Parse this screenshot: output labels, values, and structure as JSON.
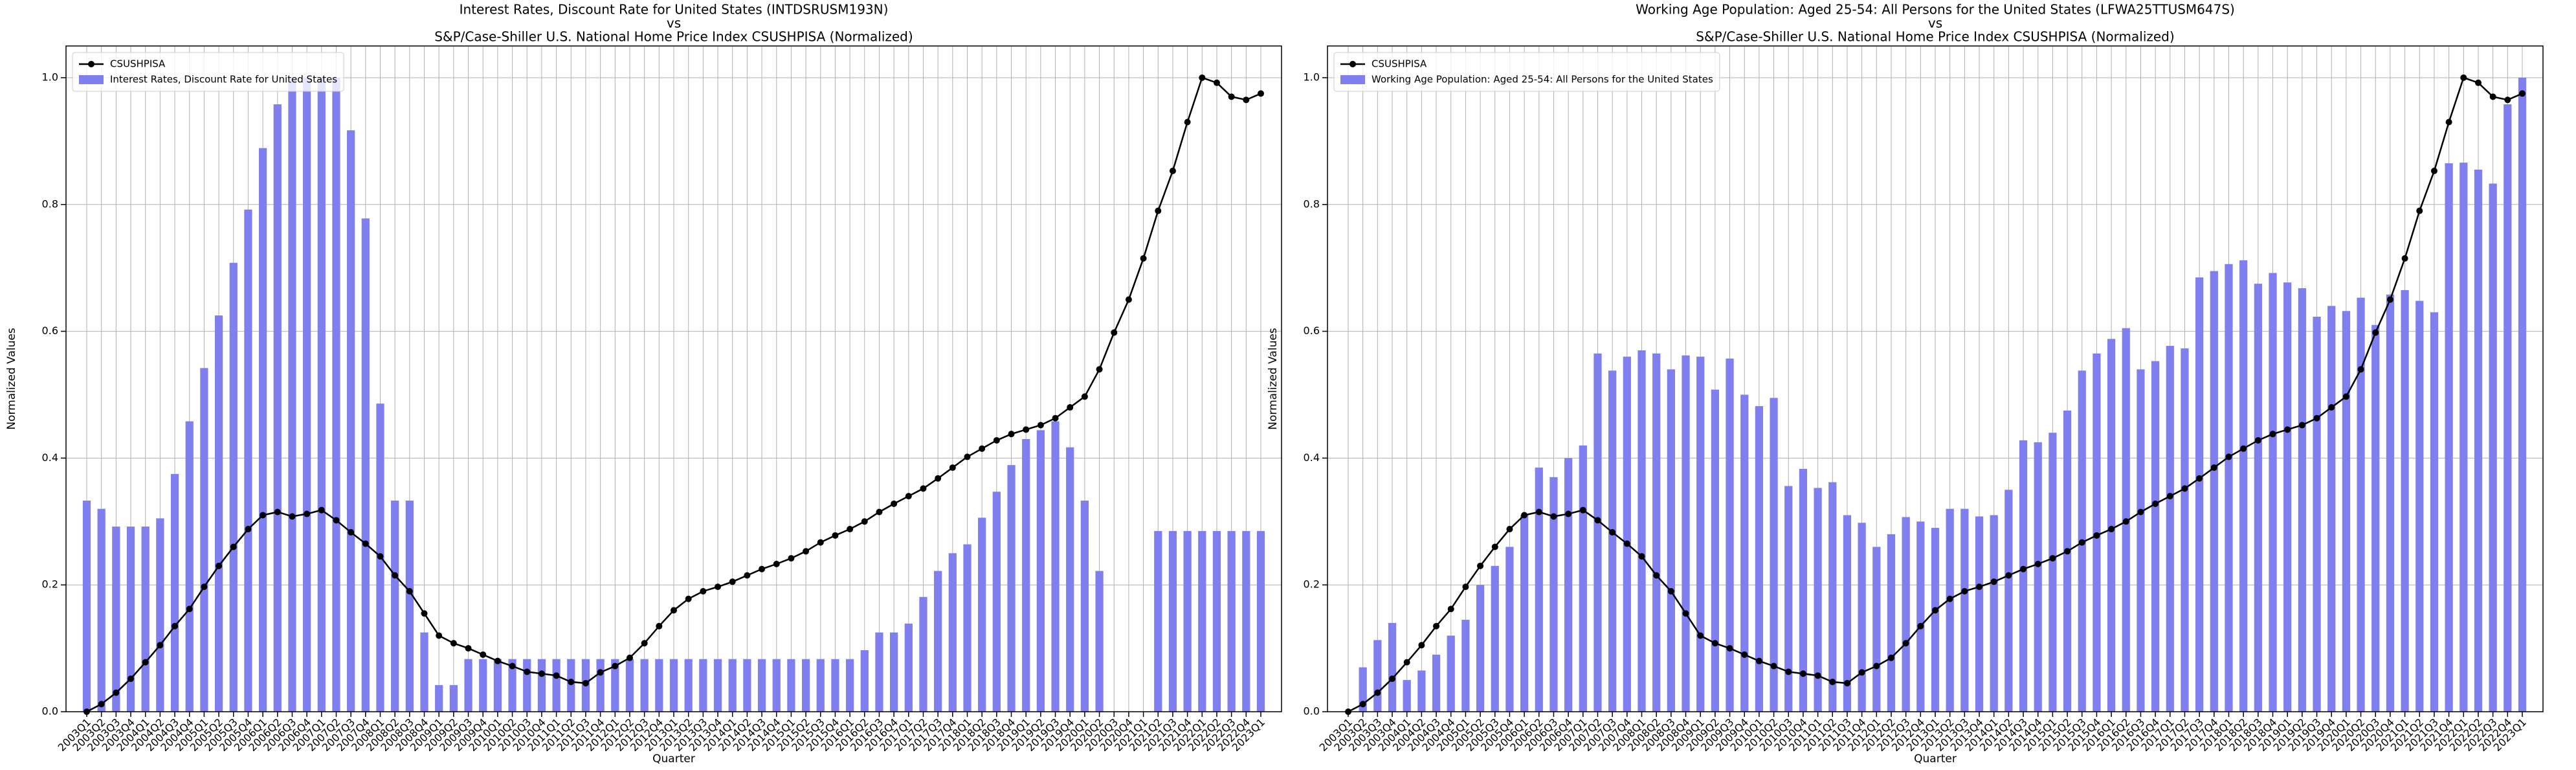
{
  "chart_data": [
    {
      "type": "combo",
      "title": [
        "Interest Rates, Discount Rate for United States (INTDSRUSM193N)",
        "vs",
        "S&P/Case-Shiller U.S. National Home Price Index CSUSHPISA (Normalized)"
      ],
      "xlabel": "Quarter",
      "ylabel": "Normalized Values",
      "categories": [
        "2003Q1",
        "2003Q2",
        "2003Q3",
        "2003Q4",
        "2004Q1",
        "2004Q2",
        "2004Q3",
        "2004Q4",
        "2005Q1",
        "2005Q2",
        "2005Q3",
        "2005Q4",
        "2006Q1",
        "2006Q2",
        "2006Q3",
        "2006Q4",
        "2007Q1",
        "2007Q2",
        "2007Q3",
        "2007Q4",
        "2008Q1",
        "2008Q2",
        "2008Q3",
        "2008Q4",
        "2009Q1",
        "2009Q2",
        "2009Q3",
        "2009Q4",
        "2010Q1",
        "2010Q2",
        "2010Q3",
        "2010Q4",
        "2011Q1",
        "2011Q2",
        "2011Q3",
        "2011Q4",
        "2012Q1",
        "2012Q2",
        "2012Q3",
        "2012Q4",
        "2013Q1",
        "2013Q2",
        "2013Q3",
        "2013Q4",
        "2014Q1",
        "2014Q2",
        "2014Q3",
        "2014Q4",
        "2015Q1",
        "2015Q2",
        "2015Q3",
        "2015Q4",
        "2016Q1",
        "2016Q2",
        "2016Q3",
        "2016Q4",
        "2017Q1",
        "2017Q2",
        "2017Q3",
        "2017Q4",
        "2018Q1",
        "2018Q2",
        "2018Q3",
        "2018Q4",
        "2019Q1",
        "2019Q2",
        "2019Q3",
        "2019Q4",
        "2020Q1",
        "2020Q2",
        "2020Q3",
        "2020Q4",
        "2021Q1",
        "2021Q2",
        "2021Q3",
        "2021Q4",
        "2022Q1",
        "2022Q2",
        "2022Q3",
        "2022Q4",
        "2023Q1"
      ],
      "series": [
        {
          "name": "CSUSHPISA",
          "type": "line",
          "color": "#000000",
          "values": [
            0,
            0.012,
            0.03,
            0.052,
            0.078,
            0.105,
            0.135,
            0.162,
            0.197,
            0.23,
            0.26,
            0.288,
            0.31,
            0.315,
            0.308,
            0.312,
            0.318,
            0.302,
            0.283,
            0.265,
            0.245,
            0.215,
            0.19,
            0.155,
            0.12,
            0.108,
            0.1,
            0.09,
            0.08,
            0.072,
            0.063,
            0.06,
            0.057,
            0.047,
            0.045,
            0.062,
            0.072,
            0.085,
            0.108,
            0.135,
            0.16,
            0.178,
            0.19,
            0.197,
            0.205,
            0.215,
            0.225,
            0.233,
            0.242,
            0.253,
            0.267,
            0.278,
            0.288,
            0.3,
            0.315,
            0.328,
            0.34,
            0.352,
            0.368,
            0.385,
            0.402,
            0.415,
            0.428,
            0.438,
            0.445,
            0.452,
            0.463,
            0.48,
            0.497,
            0.54,
            0.598,
            0.65,
            0.715,
            0.79,
            0.853,
            0.93,
            1.0,
            0.992,
            0.97,
            0.965,
            0.975
          ]
        },
        {
          "name": "Interest Rates, Discount Rate for United States",
          "type": "bar",
          "color": "#7f7fef",
          "values": [
            0.333,
            0.32,
            0.292,
            0.292,
            0.292,
            0.305,
            0.375,
            0.458,
            0.542,
            0.625,
            0.708,
            0.792,
            0.889,
            0.958,
            1,
            1,
            1,
            1,
            0.917,
            0.778,
            0.486,
            0.333,
            0.333,
            0.125,
            0.042,
            0.042,
            0.083,
            0.083,
            0.083,
            0.083,
            0.083,
            0.083,
            0.083,
            0.083,
            0.083,
            0.083,
            0.083,
            0.083,
            0.083,
            0.083,
            0.083,
            0.083,
            0.083,
            0.083,
            0.083,
            0.083,
            0.083,
            0.083,
            0.083,
            0.083,
            0.083,
            0.083,
            0.083,
            0.097,
            0.125,
            0.125,
            0.139,
            0.181,
            0.222,
            0.25,
            0.264,
            0.306,
            0.347,
            0.389,
            0.43,
            0.444,
            0.458,
            0.417,
            0.333,
            0.222,
            0,
            0,
            0,
            0.285,
            0.285,
            0.285,
            0.285,
            0.285,
            0.285,
            0.285,
            0.285
          ]
        }
      ],
      "ylim": [
        0,
        1.05
      ],
      "yticks": [
        {
          "value": 0,
          "label": "0.0"
        },
        {
          "value": 0.2,
          "label": "0.2"
        },
        {
          "value": 0.4,
          "label": "0.4"
        },
        {
          "value": 0.6,
          "label": "0.6"
        },
        {
          "value": 0.8,
          "label": "0.8"
        },
        {
          "value": 1,
          "label": "1.0"
        }
      ],
      "grid": true,
      "legend": "upper left"
    },
    {
      "type": "combo",
      "title": [
        "Working Age Population: Aged 25-54: All Persons for the United States (LFWA25TTUSM647S)",
        "vs",
        "S&P/Case-Shiller U.S. National Home Price Index CSUSHPISA (Normalized)"
      ],
      "xlabel": "Quarter",
      "ylabel": "Normalized Values",
      "categories": [
        "2003Q1",
        "2003Q2",
        "2003Q3",
        "2003Q4",
        "2004Q1",
        "2004Q2",
        "2004Q3",
        "2004Q4",
        "2005Q1",
        "2005Q2",
        "2005Q3",
        "2005Q4",
        "2006Q1",
        "2006Q2",
        "2006Q3",
        "2006Q4",
        "2007Q1",
        "2007Q2",
        "2007Q3",
        "2007Q4",
        "2008Q1",
        "2008Q2",
        "2008Q3",
        "2008Q4",
        "2009Q1",
        "2009Q2",
        "2009Q3",
        "2009Q4",
        "2010Q1",
        "2010Q2",
        "2010Q3",
        "2010Q4",
        "2011Q1",
        "2011Q2",
        "2011Q3",
        "2011Q4",
        "2012Q1",
        "2012Q2",
        "2012Q3",
        "2012Q4",
        "2013Q1",
        "2013Q2",
        "2013Q3",
        "2013Q4",
        "2014Q1",
        "2014Q2",
        "2014Q3",
        "2014Q4",
        "2015Q1",
        "2015Q2",
        "2015Q3",
        "2015Q4",
        "2016Q1",
        "2016Q2",
        "2016Q3",
        "2016Q4",
        "2017Q1",
        "2017Q2",
        "2017Q3",
        "2017Q4",
        "2018Q1",
        "2018Q2",
        "2018Q3",
        "2018Q4",
        "2019Q1",
        "2019Q2",
        "2019Q3",
        "2019Q4",
        "2020Q1",
        "2020Q2",
        "2020Q3",
        "2020Q4",
        "2021Q1",
        "2021Q2",
        "2021Q3",
        "2021Q4",
        "2022Q1",
        "2022Q2",
        "2022Q3",
        "2022Q4",
        "2023Q1"
      ],
      "series": [
        {
          "name": "CSUSHPISA",
          "type": "line",
          "color": "#000000",
          "values": [
            0,
            0.012,
            0.03,
            0.052,
            0.078,
            0.105,
            0.135,
            0.162,
            0.197,
            0.23,
            0.26,
            0.288,
            0.31,
            0.315,
            0.308,
            0.312,
            0.318,
            0.302,
            0.283,
            0.265,
            0.245,
            0.215,
            0.19,
            0.155,
            0.12,
            0.108,
            0.1,
            0.09,
            0.08,
            0.072,
            0.063,
            0.06,
            0.057,
            0.047,
            0.045,
            0.062,
            0.072,
            0.085,
            0.108,
            0.135,
            0.16,
            0.178,
            0.19,
            0.197,
            0.205,
            0.215,
            0.225,
            0.233,
            0.242,
            0.253,
            0.267,
            0.278,
            0.288,
            0.3,
            0.315,
            0.328,
            0.34,
            0.352,
            0.368,
            0.385,
            0.402,
            0.415,
            0.428,
            0.438,
            0.445,
            0.452,
            0.463,
            0.48,
            0.497,
            0.54,
            0.598,
            0.65,
            0.715,
            0.79,
            0.853,
            0.93,
            1.0,
            0.992,
            0.97,
            0.965,
            0.975
          ]
        },
        {
          "name": "Working Age Population: Aged 25-54: All Persons for the United States",
          "type": "bar",
          "color": "#7f7fef",
          "values": [
            0,
            0.07,
            0.113,
            0.14,
            0.05,
            0.065,
            0.09,
            0.12,
            0.145,
            0.2,
            0.23,
            0.26,
            0.31,
            0.385,
            0.37,
            0.4,
            0.42,
            0.565,
            0.538,
            0.56,
            0.57,
            0.565,
            0.54,
            0.562,
            0.56,
            0.508,
            0.557,
            0.5,
            0.482,
            0.495,
            0.356,
            0.383,
            0.353,
            0.362,
            0.31,
            0.298,
            0.26,
            0.28,
            0.307,
            0.3,
            0.29,
            0.32,
            0.32,
            0.308,
            0.31,
            0.35,
            0.428,
            0.425,
            0.44,
            0.475,
            0.538,
            0.565,
            0.588,
            0.605,
            0.54,
            0.553,
            0.577,
            0.573,
            0.685,
            0.695,
            0.706,
            0.712,
            0.675,
            0.692,
            0.677,
            0.668,
            0.623,
            0.64,
            0.632,
            0.653,
            0.61,
            0.658,
            0.665,
            0.648,
            0.63,
            0.865,
            0.866,
            0.855,
            0.833,
            0.958,
            1.0
          ]
        }
      ],
      "ylim": [
        0,
        1.05
      ],
      "yticks": [
        {
          "value": 0,
          "label": "0.0"
        },
        {
          "value": 0.2,
          "label": "0.2"
        },
        {
          "value": 0.4,
          "label": "0.4"
        },
        {
          "value": 0.6,
          "label": "0.6"
        },
        {
          "value": 0.8,
          "label": "0.8"
        },
        {
          "value": 1,
          "label": "1.0"
        }
      ],
      "grid": true,
      "legend": "upper left"
    }
  ]
}
